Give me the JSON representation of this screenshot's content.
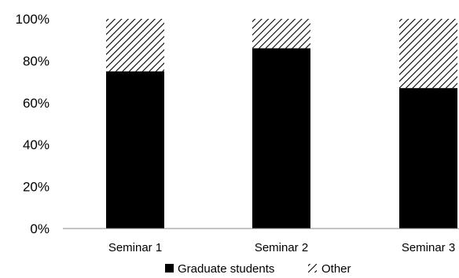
{
  "chart_data": {
    "type": "bar",
    "stacked": true,
    "percent_scale": true,
    "categories": [
      "Seminar 1",
      "Seminar 2",
      "Seminar 3"
    ],
    "series": [
      {
        "name": "Graduate students",
        "values": [
          75,
          86,
          67
        ],
        "color": "#000000",
        "pattern": "solid"
      },
      {
        "name": "Other",
        "values": [
          25,
          14,
          33
        ],
        "color": "#000000",
        "pattern": "diagonal-hatch"
      }
    ],
    "yticks": [
      "0%",
      "20%",
      "40%",
      "60%",
      "80%",
      "100%"
    ],
    "ylim": [
      0,
      100
    ],
    "grid": false,
    "legend_position": "bottom",
    "title": "",
    "xlabel": "",
    "ylabel": ""
  }
}
